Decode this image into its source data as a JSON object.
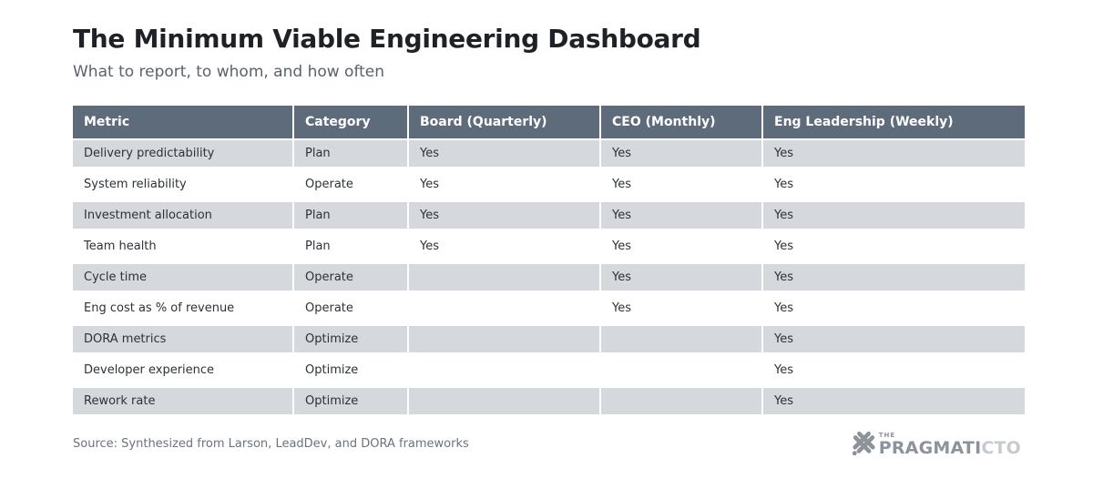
{
  "header": {
    "title": "The Minimum Viable Engineering Dashboard",
    "subtitle": "What to report, to whom, and how often"
  },
  "chart_data": {
    "type": "table",
    "title": "The Minimum Viable Engineering Dashboard",
    "subtitle": "What to report, to whom, and how often",
    "columns": [
      "Metric",
      "Category",
      "Board (Quarterly)",
      "CEO (Monthly)",
      "Eng Leadership (Weekly)"
    ],
    "rows": [
      [
        "Delivery predictability",
        "Plan",
        "Yes",
        "Yes",
        "Yes"
      ],
      [
        "System reliability",
        "Operate",
        "Yes",
        "Yes",
        "Yes"
      ],
      [
        "Investment allocation",
        "Plan",
        "Yes",
        "Yes",
        "Yes"
      ],
      [
        "Team health",
        "Plan",
        "Yes",
        "Yes",
        "Yes"
      ],
      [
        "Cycle time",
        "Operate",
        "",
        "Yes",
        "Yes"
      ],
      [
        "Eng cost as % of revenue",
        "Operate",
        "",
        "Yes",
        "Yes"
      ],
      [
        "DORA metrics",
        "Optimize",
        "",
        "",
        "Yes"
      ],
      [
        "Developer experience",
        "Optimize",
        "",
        "",
        "Yes"
      ],
      [
        "Rework rate",
        "Optimize",
        "",
        "",
        "Yes"
      ]
    ],
    "layout": {
      "striped": true,
      "stripe_rows": "odd",
      "legend": "none",
      "grid": "white separators"
    }
  },
  "footer": {
    "source": "Source: Synthesized from Larson, LeadDev, and DORA frameworks",
    "logo": {
      "icon": "hash-x-icon",
      "the": "THE",
      "word_main": "PRAGMATI",
      "word_accent": "CTO"
    }
  },
  "colors": {
    "header_bg": "#5d6b7a",
    "header_text": "#ffffff",
    "stripe": "#d5d9de",
    "title": "#1e2227",
    "subtitle": "#59626e",
    "source": "#6b737e",
    "logo_dark": "#8d939b",
    "logo_light": "#c6cbd1"
  }
}
